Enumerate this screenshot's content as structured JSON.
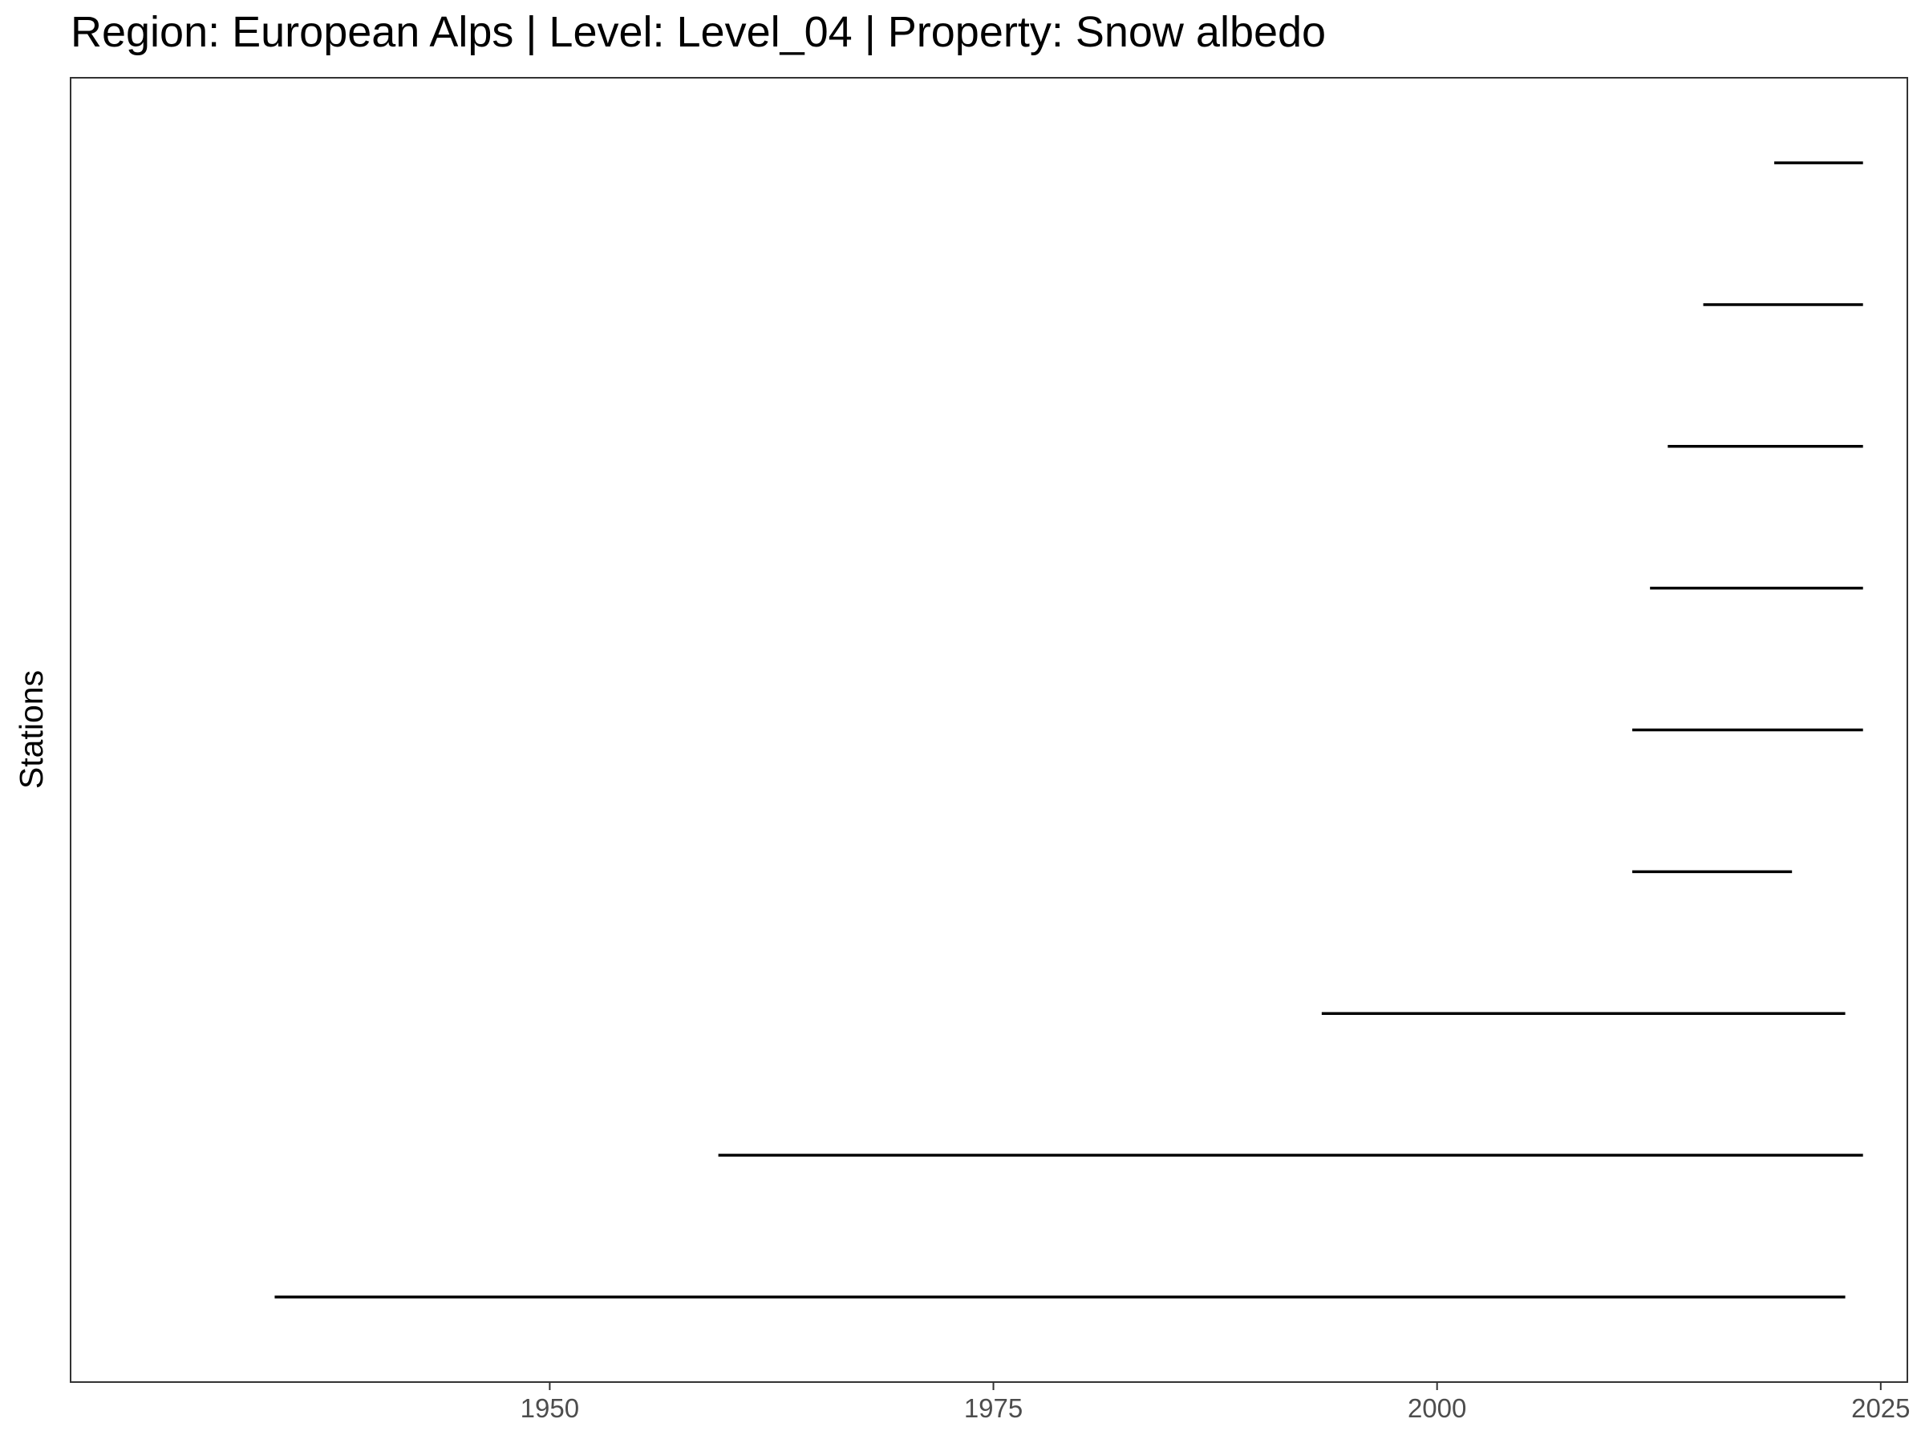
{
  "chart_data": {
    "type": "timeline",
    "title": "Region: European Alps | Level: Level_04 | Property: Snow albedo",
    "xlabel": "",
    "ylabel": "Stations",
    "xlim": [
      1923,
      2026.5
    ],
    "x_ticks": [
      1950,
      1975,
      2000,
      2025
    ],
    "grid": false,
    "legend": "none",
    "colors": {
      "segment": "#000000",
      "panel_border": "#333333",
      "tick": "#333333",
      "tick_label": "#4d4d4d",
      "background": "#ffffff"
    },
    "segments": [
      {
        "start": 1934.5,
        "end": 2023.0
      },
      {
        "start": 1959.5,
        "end": 2024.0
      },
      {
        "start": 1993.5,
        "end": 2023.0
      },
      {
        "start": 2011.0,
        "end": 2020.0
      },
      {
        "start": 2011.0,
        "end": 2024.0
      },
      {
        "start": 2012.0,
        "end": 2024.0
      },
      {
        "start": 2013.0,
        "end": 2024.0
      },
      {
        "start": 2015.0,
        "end": 2024.0
      },
      {
        "start": 2019.0,
        "end": 2024.0
      }
    ]
  }
}
